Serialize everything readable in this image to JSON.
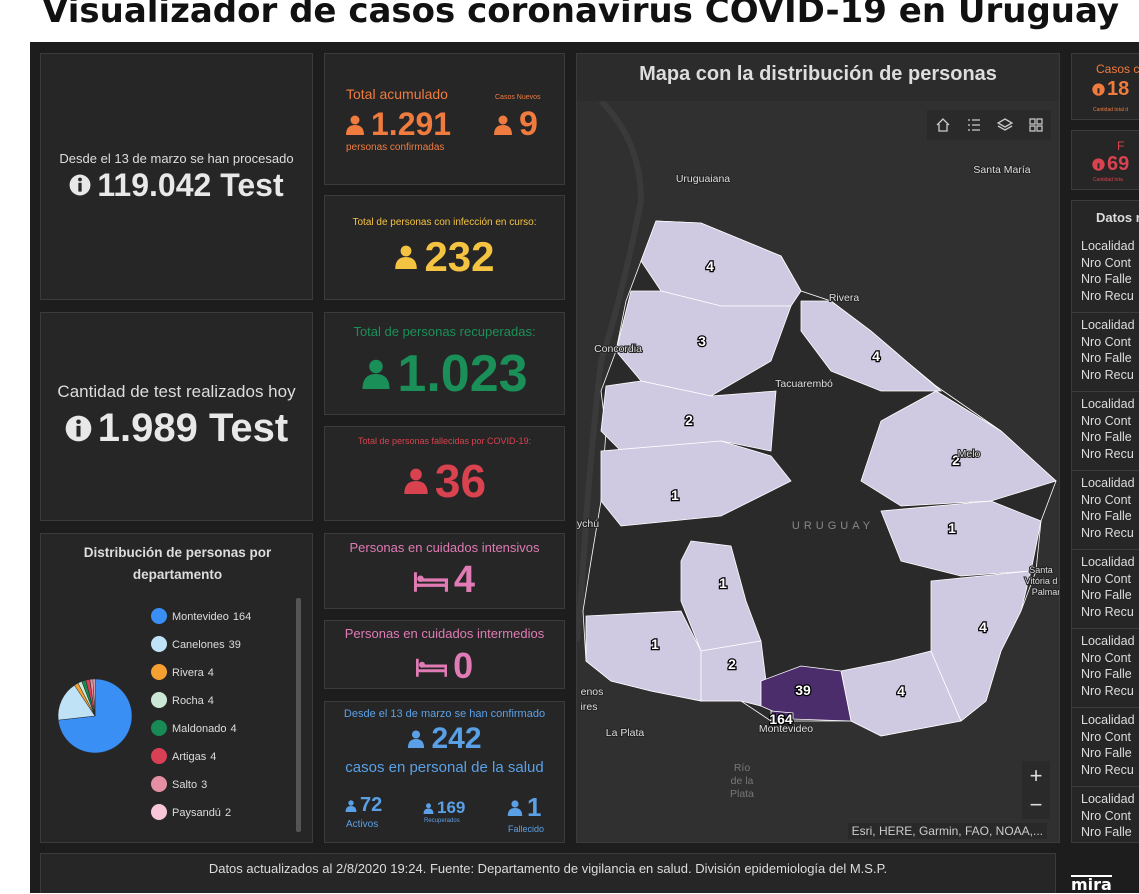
{
  "header": {
    "title": "Visualizador de casos coronavirus COVID-19 en Uruguay"
  },
  "tests_total": {
    "label": "Desde el 13 de marzo se han procesado",
    "value": "119.042 Test"
  },
  "tests_today": {
    "label": "Cantidad de test realizados hoy",
    "value": "1.989 Test"
  },
  "pie": {
    "title": "Distribución de personas por departamento",
    "items": [
      {
        "name": "Montevideo",
        "value": 164,
        "color": "#3a8ff5"
      },
      {
        "name": "Canelones",
        "value": 39,
        "color": "#bfe2f7"
      },
      {
        "name": "Rivera",
        "value": 4,
        "color": "#f5a030"
      },
      {
        "name": "Rocha",
        "value": 4,
        "color": "#cbe8d6"
      },
      {
        "name": "Maldonado",
        "value": 4,
        "color": "#178a55"
      },
      {
        "name": "Artigas",
        "value": 4,
        "color": "#d93f55"
      },
      {
        "name": "Salto",
        "value": 3,
        "color": "#e58fa2"
      },
      {
        "name": "Paysandú",
        "value": 2,
        "color": "#f8c6d8"
      }
    ]
  },
  "confirmed": {
    "label": "Total acumulado",
    "value": "1.291",
    "sublabel": "personas confirmadas",
    "new_label": "Casos Nuevos",
    "new_value": "9"
  },
  "active": {
    "label": "Total de personas con infección en curso:",
    "value": "232"
  },
  "recovered": {
    "label": "Total de personas recuperadas:",
    "value": "1.023"
  },
  "deceased": {
    "label": "Total de personas fallecidas por COVID-19:",
    "value": "36"
  },
  "icu": {
    "label": "Personas en cuidados intensivos",
    "value": "4"
  },
  "intermediate": {
    "label": "Personas en cuidados intermedios",
    "value": "0"
  },
  "health_staff": {
    "label": "Desde el 13 de marzo se han confirmado",
    "value": "242",
    "sublabel": "casos en personal de la salud",
    "active_value": "72",
    "active_label": "Activos",
    "recovered_value": "169",
    "recovered_label": "Recuperados",
    "deceased_value": "1",
    "deceased_label": "Fallecido"
  },
  "map": {
    "title": "Mapa con la distribución de personas",
    "places": [
      "Uruguaiana",
      "Santa María",
      "Rivera",
      "Concordia",
      "Tacuarembó",
      "Melo",
      "URUGUAY",
      "Santa",
      "Vitória d",
      "Palmar",
      "enos",
      "ires",
      "La Plata",
      "Montevideo",
      "Río",
      "de la",
      "Plata",
      "ychú"
    ],
    "counts": [
      4,
      3,
      4,
      2,
      2,
      1,
      1,
      1,
      4,
      1,
      2,
      39,
      4,
      164
    ],
    "attribution": "Esri, HERE, Garmin, FAO, NOAA,..."
  },
  "side": {
    "cards": [
      {
        "label": "Casos c",
        "value": "18",
        "note": "Cantidad total d"
      },
      {
        "label": "F",
        "value": "69",
        "note": "Cantidad tota"
      }
    ],
    "list_title": "Datos r",
    "records": [
      [
        "Localidad",
        "Nro Cont",
        "Nro Falle",
        "Nro Recu"
      ],
      [
        "Localidad",
        "Nro Cont",
        "Nro Falle",
        "Nro Recu"
      ],
      [
        "Localidad",
        "Nro Cont",
        "Nro Falle",
        "Nro Recu"
      ],
      [
        "Localidad",
        "Nro Cont",
        "Nro Falle",
        "Nro Recu"
      ],
      [
        "Localidad",
        "Nro Cont",
        "Nro Falle",
        "Nro Recu"
      ],
      [
        "Localidad",
        "Nro Cont",
        "Nro Falle",
        "Nro Recu"
      ],
      [
        "Localidad",
        "Nro Cont",
        "Nro Falle",
        "Nro Recu"
      ],
      [
        "Localidad",
        "Nro Cont",
        "Nro Falle"
      ]
    ]
  },
  "footer": {
    "text": "Datos actualizados al 2/8/2020 19:24. Fuente: Departamento de vigilancia en salud. División epidemiología del M.S.P.",
    "logo": "mira"
  }
}
